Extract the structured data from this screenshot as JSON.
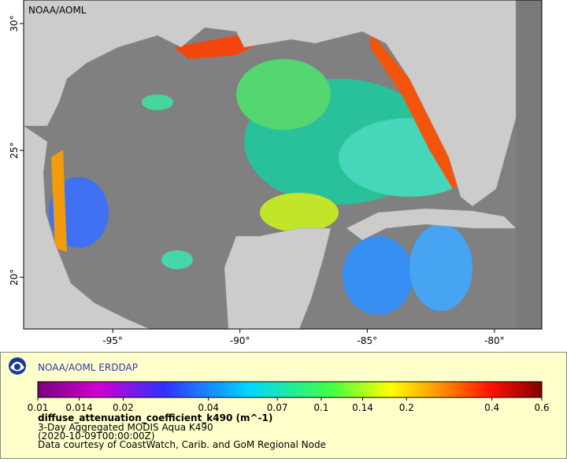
{
  "map": {
    "label": "NOAA/AOML",
    "lon_range": [
      -98.5,
      -78.14
    ],
    "lat_range": [
      17.96,
      30.93
    ],
    "lon_ticks": [
      {
        "value": -95,
        "label": "-95°"
      },
      {
        "value": -90,
        "label": "-90°"
      },
      {
        "value": -85,
        "label": "-85°"
      },
      {
        "value": -80,
        "label": "-80°"
      }
    ],
    "lat_ticks": [
      {
        "value": 30,
        "label": "30°"
      },
      {
        "value": 25,
        "label": "25°"
      },
      {
        "value": 20,
        "label": "20°"
      }
    ]
  },
  "legend": {
    "title": "NOAA/AOML ERDDAP",
    "scale": "log",
    "range": [
      0.01,
      0.6
    ],
    "ticks": [
      0.01,
      0.014,
      0.02,
      0.04,
      0.07,
      0.1,
      0.14,
      0.2,
      0.4,
      0.6
    ],
    "variable": "diffuse_attenuation_coefficient_k490 (m^-1)",
    "lines": [
      "3-Day Aggregated MODIS Aqua K490",
      "(2020-10-09T00:00:00Z)",
      "Data courtesy of CoastWatch, Carib. and GoM Regional Node"
    ]
  }
}
